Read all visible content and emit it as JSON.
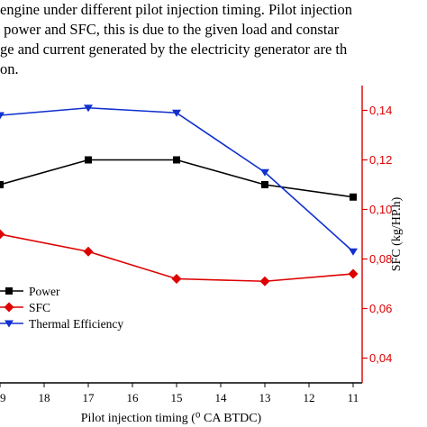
{
  "paragraph": {
    "lines": [
      "engine under different pilot injection timing. Pilot injection",
      " power and SFC, this is due to the given load and constar",
      "ge and current generated by the electricity generator are th",
      "on."
    ]
  },
  "chart_data": {
    "type": "line",
    "xlabel": "Pilot injection timing (⁰ CA BTDC)",
    "ylabel_right": "SFC (kg/HP.h)",
    "x_ticks": [
      "19",
      "18",
      "17",
      "16",
      "15",
      "14",
      "13",
      "12",
      "11"
    ],
    "x_tick_values": [
      19,
      18,
      17,
      16,
      15,
      14,
      13,
      12,
      11
    ],
    "y_right_ticks": [
      "0,04",
      "0,06",
      "0,08",
      "0,10",
      "0,12",
      "0,14"
    ],
    "y_right_tick_values": [
      0.04,
      0.06,
      0.08,
      0.1,
      0.12,
      0.14
    ],
    "y_right_range": [
      0.03,
      0.15
    ],
    "x": [
      19,
      17,
      15,
      13,
      11
    ],
    "series": [
      {
        "name": "Power",
        "color": "#000000",
        "marker": "square",
        "axis": "right_scale_visual",
        "values": [
          0.11,
          0.12,
          0.12,
          0.11,
          0.105
        ]
      },
      {
        "name": "SFC",
        "color": "#dd0000",
        "marker": "diamond",
        "axis": "right",
        "values": [
          0.09,
          0.083,
          0.072,
          0.071,
          0.074
        ]
      },
      {
        "name": "Thermal Efficiency",
        "color": "#1030d0",
        "marker": "triangle-down",
        "axis": "right_scale_visual",
        "values": [
          0.138,
          0.141,
          0.139,
          0.115,
          0.083
        ]
      }
    ],
    "legend_position": "bottom-left",
    "right_axis_color": "#dd0000"
  }
}
